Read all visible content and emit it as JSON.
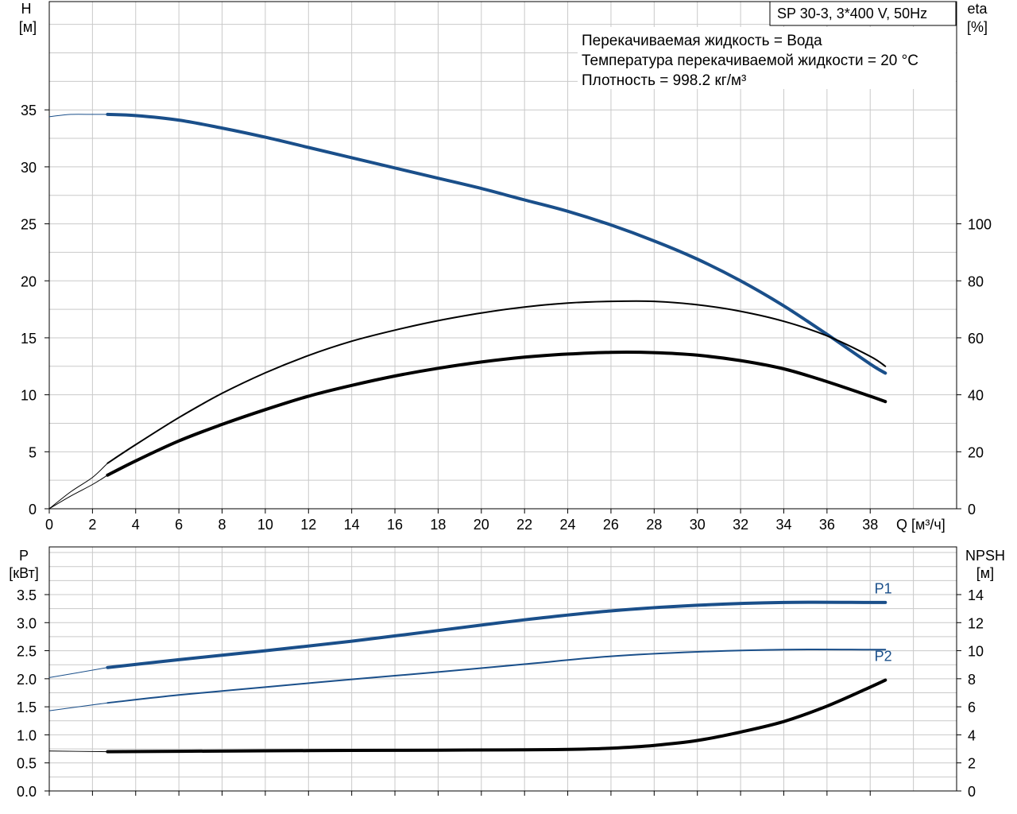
{
  "chart_data": [
    {
      "type": "line",
      "title": "SP 30-3, 3*400 V, 50Hz",
      "annotations": [
        "Перекачиваемая жидкость = Вода",
        "Температура перекачиваемой жидкости = 20 °C",
        "Плотность = 998.2 кг/м³"
      ],
      "xlabel": "Q [м³/ч]",
      "ylabel_left": [
        "H",
        "[м]"
      ],
      "ylabel_right": [
        "eta",
        "[%]"
      ],
      "xlim": [
        0,
        42
      ],
      "ylim_left": [
        0,
        44.5
      ],
      "ylim_right": [
        0,
        178
      ],
      "x_ticks": [
        "0",
        "2",
        "4",
        "6",
        "8",
        "10",
        "12",
        "14",
        "16",
        "18",
        "20",
        "22",
        "24",
        "26",
        "28",
        "30",
        "32",
        "34",
        "36",
        "38"
      ],
      "y_ticks_left": [
        "0",
        "5",
        "10",
        "15",
        "20",
        "25",
        "30",
        "35"
      ],
      "y_ticks_right": [
        "0",
        "20",
        "40",
        "60",
        "80",
        "100"
      ],
      "grid": true,
      "series": [
        {
          "axis": "left",
          "color": "#1a4f8a",
          "width": 4,
          "ext_x": [
            0,
            1,
            2,
            2.7
          ],
          "ext_y": [
            34.4,
            34.6,
            34.6,
            34.6
          ],
          "x": [
            2.7,
            4,
            6,
            8,
            10,
            12,
            14,
            16,
            18,
            20,
            22,
            24,
            26,
            28,
            30,
            32,
            34,
            36,
            38,
            38.7
          ],
          "y": [
            34.6,
            34.5,
            34.1,
            33.4,
            32.6,
            31.7,
            30.8,
            29.9,
            29.0,
            28.1,
            27.1,
            26.1,
            24.9,
            23.5,
            21.9,
            20.0,
            17.8,
            15.3,
            12.7,
            11.9
          ]
        },
        {
          "axis": "right",
          "color": "#000000",
          "width": 2,
          "ext_x": [
            0,
            1,
            2,
            2.7
          ],
          "ext_y": [
            0,
            6,
            11,
            16
          ],
          "x": [
            2.7,
            4,
            6,
            8,
            10,
            12,
            14,
            16,
            18,
            20,
            22,
            24,
            26,
            28,
            30,
            32,
            34,
            36,
            38,
            38.7
          ],
          "y": [
            16,
            22.5,
            32,
            40.5,
            47.7,
            53.8,
            58.8,
            62.7,
            66,
            68.7,
            70.8,
            72.2,
            72.8,
            72.8,
            71.6,
            69.3,
            65.8,
            60.7,
            53.5,
            50
          ]
        },
        {
          "axis": "right",
          "color": "#000000",
          "width": 4,
          "ext_x": [
            0,
            1,
            2,
            2.7
          ],
          "ext_y": [
            0,
            4.5,
            8.5,
            11.8
          ],
          "x": [
            2.7,
            4,
            6,
            8,
            10,
            12,
            14,
            16,
            18,
            20,
            22,
            24,
            26,
            28,
            30,
            32,
            34,
            36,
            38,
            38.7
          ],
          "y": [
            11.8,
            16.8,
            23.8,
            29.6,
            34.8,
            39.5,
            43.3,
            46.6,
            49.3,
            51.5,
            53.2,
            54.3,
            54.9,
            54.8,
            53.9,
            52,
            49.1,
            44.6,
            39.5,
            37.6
          ]
        }
      ]
    },
    {
      "type": "line",
      "ylabel_left": [
        "P",
        "[кВт]"
      ],
      "ylabel_right": [
        "NPSH",
        "[м]"
      ],
      "xlim": [
        0,
        42
      ],
      "ylim_left": [
        0,
        4.35
      ],
      "ylim_right": [
        0,
        17.4
      ],
      "y_ticks_left": [
        "0.0",
        "0.5",
        "1.0",
        "1.5",
        "2.0",
        "2.5",
        "3.0",
        "3.5"
      ],
      "y_ticks_right": [
        "0",
        "2",
        "4",
        "6",
        "8",
        "10",
        "12",
        "14"
      ],
      "grid": true,
      "series": [
        {
          "name": "P1",
          "axis": "left",
          "color": "#1a4f8a",
          "width": 4,
          "ext_x": [
            0,
            2.7
          ],
          "ext_y": [
            2.02,
            2.2
          ],
          "x": [
            2.7,
            6,
            10,
            14,
            18,
            22,
            26,
            30,
            34,
            38,
            38.7
          ],
          "y": [
            2.2,
            2.34,
            2.5,
            2.67,
            2.86,
            3.05,
            3.21,
            3.31,
            3.36,
            3.36,
            3.36
          ],
          "label_at": [
            38.2,
            3.52
          ]
        },
        {
          "name": "P2",
          "axis": "left",
          "color": "#1a4f8a",
          "width": 2,
          "ext_x": [
            0,
            2.7
          ],
          "ext_y": [
            1.43,
            1.57
          ],
          "x": [
            2.7,
            6,
            10,
            14,
            18,
            22,
            26,
            30,
            34,
            38,
            38.7
          ],
          "y": [
            1.57,
            1.71,
            1.85,
            1.99,
            2.12,
            2.26,
            2.4,
            2.48,
            2.52,
            2.52,
            2.52
          ],
          "label_at": [
            38.2,
            2.32
          ]
        },
        {
          "axis": "right",
          "color": "#000000",
          "width": 4,
          "ext_x": [
            0,
            2.7
          ],
          "ext_y": [
            2.85,
            2.8
          ],
          "x": [
            2.7,
            6,
            10,
            14,
            18,
            22,
            24,
            26,
            28,
            30,
            32,
            34,
            36,
            38,
            38.7
          ],
          "y": [
            2.8,
            2.83,
            2.86,
            2.89,
            2.91,
            2.93,
            2.96,
            3.05,
            3.25,
            3.6,
            4.2,
            4.95,
            6.05,
            7.4,
            7.9
          ]
        }
      ]
    }
  ]
}
